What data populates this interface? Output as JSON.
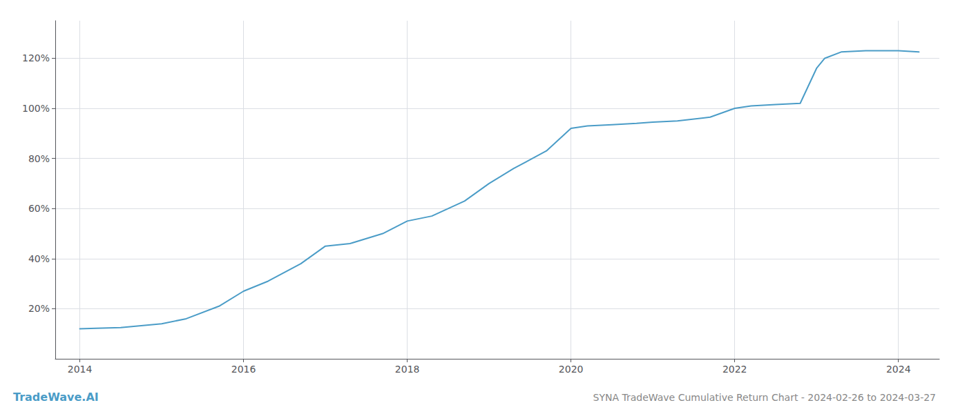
{
  "chart_data": {
    "type": "line",
    "title": "SYNA TradeWave Cumulative Return Chart - 2024-02-26 to 2024-03-27",
    "annotations": [
      "TradeWave.AI"
    ],
    "x": [
      2014.0,
      2014.2,
      2014.5,
      2015.0,
      2015.3,
      2015.7,
      2016.0,
      2016.3,
      2016.7,
      2017.0,
      2017.3,
      2017.7,
      2018.0,
      2018.3,
      2018.7,
      2019.0,
      2019.3,
      2019.7,
      2020.0,
      2020.2,
      2020.5,
      2020.8,
      2021.0,
      2021.3,
      2021.7,
      2022.0,
      2022.2,
      2022.5,
      2022.8,
      2023.0,
      2023.1,
      2023.3,
      2023.6,
      2024.0,
      2024.25
    ],
    "values": [
      12.0,
      12.2,
      12.5,
      14.0,
      16.0,
      21.0,
      27.0,
      31.0,
      38.0,
      45.0,
      46.0,
      50.0,
      55.0,
      57.0,
      63.0,
      70.0,
      76.0,
      83.0,
      92.0,
      93.0,
      93.5,
      94.0,
      94.5,
      95.0,
      96.5,
      100.0,
      101.0,
      101.5,
      102.0,
      116.0,
      120.0,
      122.5,
      123.0,
      123.0,
      122.5
    ],
    "color": "#4a9cc7",
    "xlim": [
      2013.7,
      2024.5
    ],
    "xticks": [
      2014,
      2016,
      2018,
      2020,
      2022,
      2024
    ],
    "ylim": [
      0,
      135
    ],
    "yticks": [
      {
        "value": 20,
        "label": "20%"
      },
      {
        "value": 40,
        "label": "40%"
      },
      {
        "value": 60,
        "label": "60%"
      },
      {
        "value": 80,
        "label": "80%"
      },
      {
        "value": 100,
        "label": "100%"
      },
      {
        "value": 120,
        "label": "120%"
      }
    ],
    "grid": true
  }
}
